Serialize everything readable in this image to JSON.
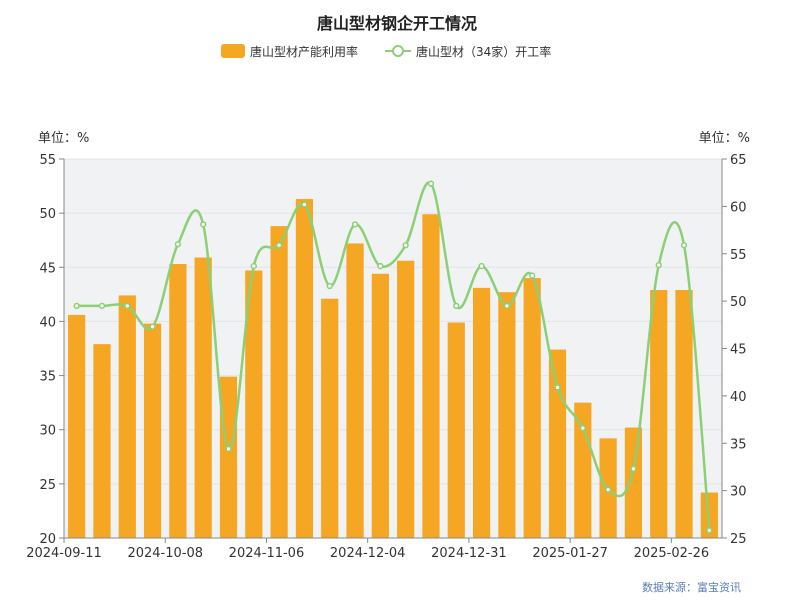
{
  "colors": {
    "bar": "#f5a623",
    "line": "#8ccf75",
    "plot_bg": "#f1f2f4",
    "grid": "#e2e4e8",
    "axis": "#888888"
  },
  "chart_data": {
    "type": "bar",
    "title": "唐山型材钢企开工情况",
    "legend_position": "top-center",
    "grid": true,
    "left_unit": "单位：%",
    "right_unit": "单位：%",
    "source": "数据来源：富宝资讯",
    "ylim_left": [
      20,
      55
    ],
    "ylim_right": [
      25,
      65
    ],
    "left_ticks": [
      "20",
      "25",
      "30",
      "35",
      "40",
      "45",
      "50",
      "55"
    ],
    "right_ticks": [
      "25",
      "30",
      "35",
      "40",
      "45",
      "50",
      "55",
      "60",
      "65"
    ],
    "x_tick_labels": [
      "2024-09-11",
      "2024-10-08",
      "2024-11-06",
      "2024-12-04",
      "2024-12-31",
      "2025-01-27",
      "2025-02-26"
    ],
    "x_tick_indices": [
      0,
      4,
      8,
      12,
      16,
      20,
      24
    ],
    "series": [
      {
        "name": "唐山型材产能利用率",
        "type": "bar",
        "axis": "left",
        "values": [
          40.6,
          37.9,
          42.4,
          39.8,
          45.3,
          45.9,
          34.9,
          44.7,
          48.8,
          51.3,
          42.1,
          47.2,
          44.4,
          45.6,
          49.9,
          39.9,
          43.1,
          42.7,
          44.0,
          37.4,
          32.5,
          29.2,
          30.2,
          42.9,
          42.9,
          24.2
        ]
      },
      {
        "name": "唐山型材（34家）开工率",
        "type": "line",
        "axis": "right",
        "values": [
          49.5,
          49.5,
          49.5,
          47.3,
          56.0,
          58.1,
          34.4,
          53.7,
          55.9,
          60.2,
          51.6,
          58.1,
          53.7,
          55.9,
          62.4,
          49.5,
          53.7,
          49.5,
          52.7,
          40.9,
          36.6,
          30.1,
          32.3,
          53.8,
          55.9,
          25.8
        ]
      }
    ]
  }
}
